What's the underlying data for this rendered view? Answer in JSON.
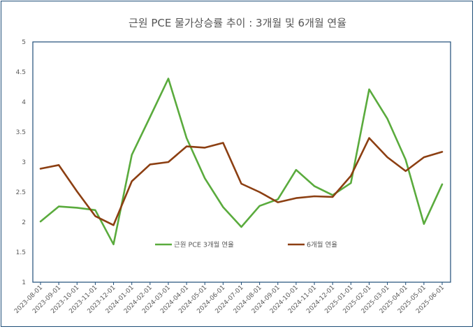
{
  "chart_data": {
    "type": "line",
    "title": "근원 PCE 물가상승률 추이 : 3개월 및 6개월 연율",
    "xlabel": "",
    "ylabel": "",
    "ylim": [
      1,
      5
    ],
    "yticks": [
      "1",
      "1.5",
      "2",
      "2.5",
      "3",
      "3.5",
      "4",
      "4.5",
      "5"
    ],
    "grid": false,
    "legend": "center",
    "categories": [
      "2023-08-01",
      "2023-09-01",
      "2023-10-01",
      "2023-11-01",
      "2023-12-01",
      "2024-01-01",
      "2024-02-01",
      "2024-03-01",
      "2024-04-01",
      "2024-05-01",
      "2024-06-01",
      "2024-07-01",
      "2024-08-01",
      "2024-09-01",
      "2024-10-01",
      "2024-11-01",
      "2024-12-01",
      "2025-01-01",
      "2025-02-01",
      "2025-03-01",
      "2025-04-01",
      "2025-05-01",
      "2025-06-01"
    ],
    "series": [
      {
        "name": "근원 PCE 3개월 연율",
        "color": "#5aab3d",
        "values": [
          2.01,
          2.26,
          2.24,
          2.2,
          1.63,
          3.12,
          3.75,
          4.39,
          3.4,
          2.73,
          2.25,
          1.92,
          2.27,
          2.38,
          2.87,
          2.6,
          2.45,
          2.65,
          4.21,
          3.72,
          3.04,
          1.97,
          2.63
        ]
      },
      {
        "name": "6개월 연율",
        "color": "#8c3f12",
        "values": [
          2.89,
          2.95,
          2.51,
          2.1,
          1.95,
          2.68,
          2.96,
          3.0,
          3.26,
          3.24,
          3.32,
          2.64,
          2.5,
          2.33,
          2.4,
          2.43,
          2.42,
          2.77,
          3.4,
          3.08,
          2.85,
          3.08,
          3.17
        ]
      }
    ]
  }
}
